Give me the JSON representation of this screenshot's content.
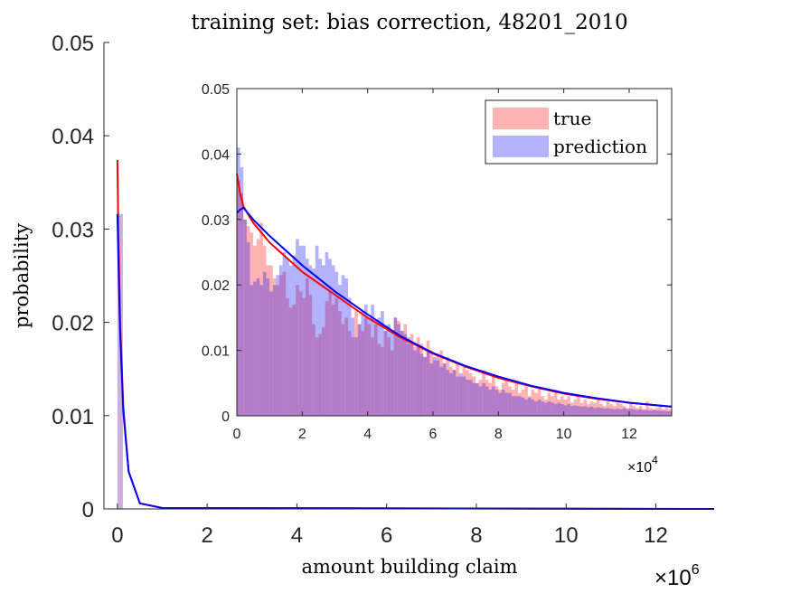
{
  "chart_data": [
    {
      "type": "area",
      "title": "training set: bias correction, 48201_2010",
      "xlabel": "amount building claim",
      "ylabel": "probability",
      "x_exponent_label": "×10",
      "x_exponent": "6",
      "xlim": [
        -300000,
        13300000
      ],
      "ylim": [
        0,
        0.05
      ],
      "x_ticks": [
        0,
        2000000,
        4000000,
        6000000,
        8000000,
        10000000,
        12000000
      ],
      "x_tick_labels": [
        "0",
        "2",
        "4",
        "6",
        "8",
        "10",
        "12"
      ],
      "y_ticks": [
        0,
        0.01,
        0.02,
        0.03,
        0.04,
        0.05
      ],
      "y_tick_labels": [
        "0",
        "0.01",
        "0.02",
        "0.03",
        "0.04",
        "0.05"
      ],
      "grid": false,
      "series": [
        {
          "name": "true",
          "color": "#ff0000",
          "x": [
            0,
            20000,
            60000,
            130000,
            250000,
            500000,
            1000000,
            13300000
          ],
          "values": [
            0.0374,
            0.03,
            0.02,
            0.011,
            0.004,
            0.0006,
            0.0001,
            0.0
          ]
        },
        {
          "name": "prediction",
          "color": "#0000ff",
          "x": [
            0,
            20000,
            60000,
            130000,
            250000,
            500000,
            1000000,
            13300000
          ],
          "values": [
            0.0316,
            0.027,
            0.019,
            0.0105,
            0.004,
            0.0006,
            0.0001,
            0.0
          ]
        }
      ]
    },
    {
      "type": "bar",
      "subtype": "histogram-overlay",
      "xlim": [
        0,
        133000
      ],
      "ylim": [
        0,
        0.05
      ],
      "x_exponent_label": "×10",
      "x_exponent": "4",
      "x_ticks": [
        0,
        20000,
        40000,
        60000,
        80000,
        100000,
        120000
      ],
      "x_tick_labels": [
        "0",
        "2",
        "4",
        "6",
        "8",
        "10",
        "12"
      ],
      "y_ticks": [
        0,
        0.01,
        0.02,
        0.03,
        0.04,
        0.05
      ],
      "y_tick_labels": [
        "0",
        "0.01",
        "0.02",
        "0.03",
        "0.04",
        "0.05"
      ],
      "legend": {
        "placement": "top-right",
        "entries": [
          {
            "label": "true",
            "color": "#ffb3b3"
          },
          {
            "label": "prediction",
            "color": "#b3b3ff"
          }
        ]
      },
      "bin_width": 1000,
      "hist_true": [
        0.036,
        0.034,
        0.03,
        0.029,
        0.028,
        0.026,
        0.027,
        0.0295,
        0.026,
        0.023,
        0.023,
        0.021,
        0.02,
        0.0215,
        0.022,
        0.018,
        0.0165,
        0.017,
        0.02,
        0.019,
        0.018,
        0.021,
        0.0185,
        0.014,
        0.012,
        0.0125,
        0.0135,
        0.0175,
        0.019,
        0.017,
        0.018,
        0.016,
        0.014,
        0.015,
        0.013,
        0.012,
        0.016,
        0.014,
        0.013,
        0.015,
        0.014,
        0.012,
        0.0145,
        0.011,
        0.0105,
        0.013,
        0.012,
        0.01,
        0.015,
        0.0145,
        0.013,
        0.014,
        0.011,
        0.0125,
        0.0105,
        0.012,
        0.011,
        0.009,
        0.0115,
        0.01,
        0.0085,
        0.0095,
        0.01,
        0.008,
        0.009,
        0.0075,
        0.007,
        0.008,
        0.006,
        0.0075,
        0.007,
        0.0065,
        0.006,
        0.005,
        0.0055,
        0.007,
        0.0055,
        0.005,
        0.006,
        0.0045,
        0.004,
        0.005,
        0.0055,
        0.0045,
        0.004,
        0.005,
        0.0035,
        0.004,
        0.0045,
        0.003,
        0.004,
        0.0035,
        0.0045,
        0.003,
        0.0025,
        0.0035,
        0.003,
        0.004,
        0.0025,
        0.003,
        0.0025,
        0.003,
        0.002,
        0.0025,
        0.003,
        0.002,
        0.0025,
        0.0018,
        0.0022,
        0.002,
        0.0025,
        0.0018,
        0.0015,
        0.0022,
        0.0018,
        0.0015,
        0.002,
        0.0018,
        0.0015,
        0.0012,
        0.002,
        0.0015,
        0.0012,
        0.0015,
        0.001,
        0.0022,
        0.0012,
        0.001,
        0.0012,
        0.0015,
        0.001,
        0.0012,
        0.001
      ],
      "hist_pred": [
        0.041,
        0.038,
        0.03,
        0.0265,
        0.02,
        0.0205,
        0.021,
        0.02,
        0.022,
        0.021,
        0.019,
        0.02,
        0.0215,
        0.023,
        0.025,
        0.024,
        0.023,
        0.0245,
        0.027,
        0.026,
        0.026,
        0.024,
        0.023,
        0.0225,
        0.026,
        0.024,
        0.023,
        0.025,
        0.024,
        0.023,
        0.022,
        0.02,
        0.0215,
        0.021,
        0.018,
        0.015,
        0.012,
        0.014,
        0.016,
        0.017,
        0.015,
        0.017,
        0.014,
        0.015,
        0.016,
        0.013,
        0.014,
        0.013,
        0.015,
        0.014,
        0.013,
        0.0125,
        0.012,
        0.011,
        0.01,
        0.0105,
        0.0095,
        0.009,
        0.01,
        0.008,
        0.009,
        0.0085,
        0.0075,
        0.008,
        0.007,
        0.0065,
        0.007,
        0.006,
        0.0065,
        0.006,
        0.0055,
        0.0055,
        0.005,
        0.005,
        0.0045,
        0.005,
        0.0045,
        0.004,
        0.0045,
        0.004,
        0.0035,
        0.004,
        0.0035,
        0.0035,
        0.003,
        0.003,
        0.003,
        0.0028,
        0.0025,
        0.0028,
        0.0025,
        0.0022,
        0.0025,
        0.0022,
        0.002,
        0.0022,
        0.002,
        0.0018,
        0.002,
        0.0018,
        0.0016,
        0.0018,
        0.0015,
        0.0016,
        0.0015,
        0.0014,
        0.0015,
        0.0013,
        0.0014,
        0.0012,
        0.0013,
        0.0012,
        0.0011,
        0.0012,
        0.0011,
        0.001,
        0.0011,
        0.001,
        0.0012,
        0.001,
        0.0011,
        0.001,
        0.0009,
        0.001,
        0.0009,
        0.0009,
        0.0008,
        0.0009,
        0.0008,
        0.0008,
        0.0008,
        0.0007,
        0.0007
      ],
      "curves": [
        {
          "name": "true",
          "color": "#ff0000",
          "x": [
            0,
            1000,
            2000,
            5000,
            10000,
            20000,
            30000,
            40000,
            50000,
            60000,
            70000,
            80000,
            90000,
            100000,
            110000,
            120000,
            133000
          ],
          "values": [
            0.037,
            0.034,
            0.032,
            0.0295,
            0.0265,
            0.022,
            0.0185,
            0.015,
            0.012,
            0.0095,
            0.0075,
            0.0058,
            0.0045,
            0.0034,
            0.0026,
            0.002,
            0.0014
          ]
        },
        {
          "name": "prediction",
          "color": "#0000ff",
          "x": [
            0,
            1000,
            2000,
            5000,
            10000,
            20000,
            30000,
            40000,
            50000,
            60000,
            70000,
            80000,
            90000,
            100000,
            110000,
            120000,
            133000
          ],
          "values": [
            0.031,
            0.0315,
            0.0318,
            0.03,
            0.0275,
            0.023,
            0.019,
            0.0155,
            0.0122,
            0.0096,
            0.0076,
            0.006,
            0.0046,
            0.0035,
            0.0027,
            0.002,
            0.0014
          ]
        }
      ]
    }
  ]
}
